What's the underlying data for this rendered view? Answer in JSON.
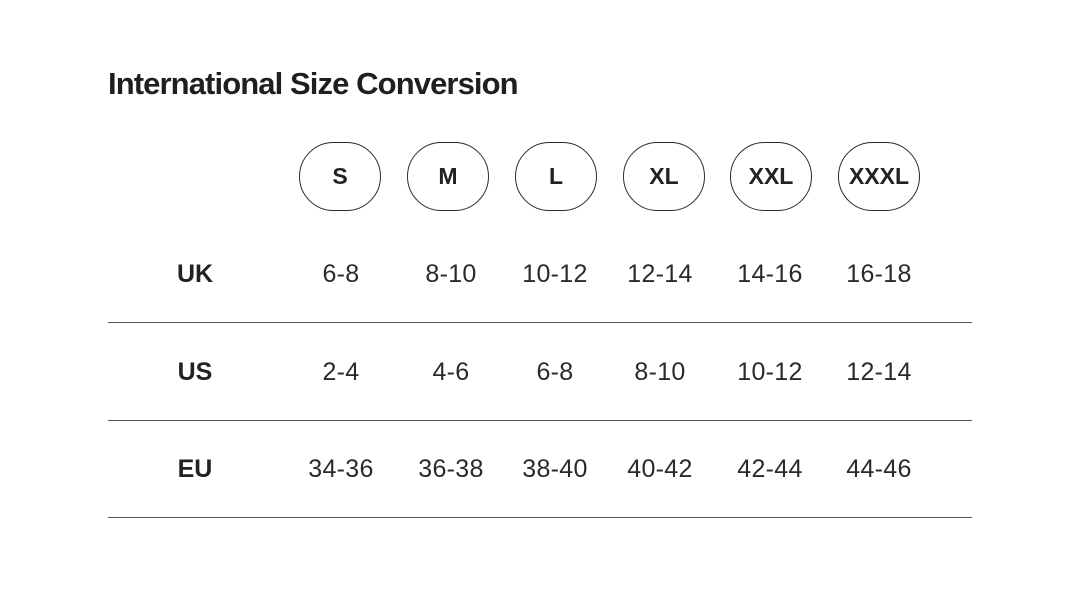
{
  "title": "International Size Conversion",
  "sizes": [
    "S",
    "M",
    "L",
    "XL",
    "XXL",
    "XXXL"
  ],
  "rows": [
    {
      "label": "UK",
      "values": [
        "6-8",
        "8-10",
        "10-12",
        "12-14",
        "14-16",
        "16-18"
      ]
    },
    {
      "label": "US",
      "values": [
        "2-4",
        "4-6",
        "6-8",
        "8-10",
        "10-12",
        "12-14"
      ]
    },
    {
      "label": "EU",
      "values": [
        "34-36",
        "36-38",
        "38-40",
        "40-42",
        "42-44",
        "44-46"
      ]
    }
  ],
  "colors": {
    "text": "#222222",
    "border": "#2a2a2a",
    "divider": "#555555",
    "background": "#ffffff"
  }
}
